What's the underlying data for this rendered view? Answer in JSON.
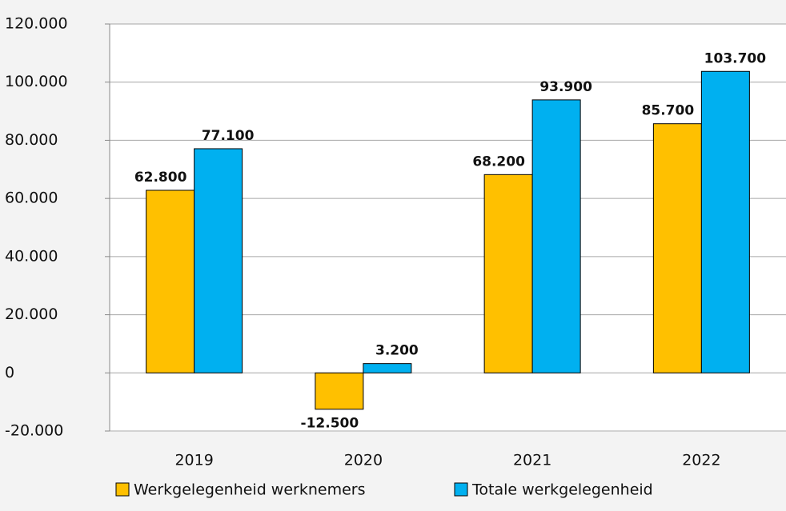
{
  "chart_data": {
    "type": "bar",
    "categories": [
      "2019",
      "2020",
      "2021",
      "2022"
    ],
    "series": [
      {
        "name": "Werkgelegenheid werknemers",
        "color": "#ffc000",
        "values": [
          62800,
          -12500,
          68200,
          85700
        ],
        "value_labels": [
          "62.800",
          "-12.500",
          "68.200",
          "85.700"
        ]
      },
      {
        "name": "Totale werkgelegenheid",
        "color": "#00b0f0",
        "values": [
          77100,
          3200,
          93900,
          103700
        ],
        "value_labels": [
          "77.100",
          "3.200",
          "93.900",
          "103.700"
        ]
      }
    ],
    "ylim": [
      -20000,
      120000
    ],
    "yticks": [
      {
        "value": -20000,
        "label": "-20.000"
      },
      0,
      {
        "value": 20000,
        "label": "20.000"
      },
      {
        "value": 40000,
        "label": "40.000"
      },
      {
        "value": 60000,
        "label": "60.000"
      },
      {
        "value": 80000,
        "label": "80.000"
      },
      {
        "value": 100000,
        "label": "100.000"
      },
      {
        "value": 120000,
        "label": "120.000"
      }
    ],
    "grid": true
  }
}
